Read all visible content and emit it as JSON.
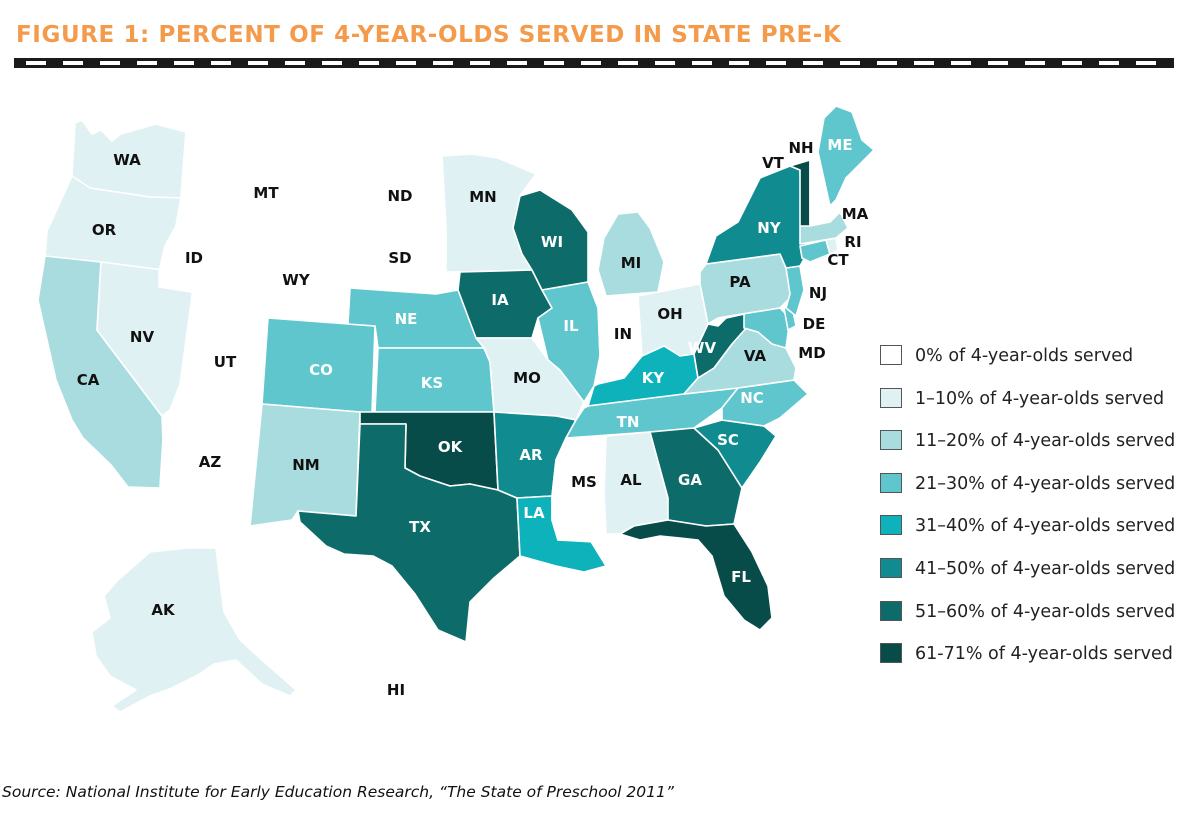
{
  "figure": {
    "title": "FIGURE 1: PERCENT OF 4-YEAR-OLDS SERVED IN STATE PRE-K",
    "source": "Source: National Institute for Early Education Research, “The State of Preschool 2011”"
  },
  "colors": {
    "title": "#f39a4b",
    "rule": "#1a1a1a",
    "text_dark": "#111111",
    "text_light": "#ffffff",
    "border": "#555555"
  },
  "legend": [
    {
      "id": "c0",
      "label": "0% of 4-year-olds served",
      "color": "#ffffff"
    },
    {
      "id": "c1",
      "label": "1–10% of 4-year-olds served",
      "color": "#dff1f3"
    },
    {
      "id": "c2",
      "label": "11–20% of 4-year-olds served",
      "color": "#a9dcdf"
    },
    {
      "id": "c3",
      "label": "21–30% of 4-year-olds served",
      "color": "#5ec6cc"
    },
    {
      "id": "c4",
      "label": "31–40% of 4-year-olds served",
      "color": "#0db2bb"
    },
    {
      "id": "c5",
      "label": "41–50% of 4-year-olds served",
      "color": "#108b8f"
    },
    {
      "id": "c6",
      "label": "51–60% of 4-year-olds served",
      "color": "#0d6c6a"
    },
    {
      "id": "c7",
      "label": "61-71% of 4-year-olds served",
      "color": "#084c4a"
    }
  ],
  "states": [
    {
      "abbr": "WA",
      "category": "c1"
    },
    {
      "abbr": "OR",
      "category": "c1"
    },
    {
      "abbr": "CA",
      "category": "c2"
    },
    {
      "abbr": "NV",
      "category": "c1"
    },
    {
      "abbr": "ID",
      "category": "c0"
    },
    {
      "abbr": "MT",
      "category": "c0"
    },
    {
      "abbr": "WY",
      "category": "c0"
    },
    {
      "abbr": "UT",
      "category": "c0"
    },
    {
      "abbr": "AZ",
      "category": "c0"
    },
    {
      "abbr": "CO",
      "category": "c3"
    },
    {
      "abbr": "NM",
      "category": "c2"
    },
    {
      "abbr": "ND",
      "category": "c0"
    },
    {
      "abbr": "SD",
      "category": "c0"
    },
    {
      "abbr": "NE",
      "category": "c3"
    },
    {
      "abbr": "KS",
      "category": "c3"
    },
    {
      "abbr": "OK",
      "category": "c7"
    },
    {
      "abbr": "TX",
      "category": "c6"
    },
    {
      "abbr": "MN",
      "category": "c1"
    },
    {
      "abbr": "IA",
      "category": "c6"
    },
    {
      "abbr": "MO",
      "category": "c1"
    },
    {
      "abbr": "AR",
      "category": "c5"
    },
    {
      "abbr": "LA",
      "category": "c4"
    },
    {
      "abbr": "WI",
      "category": "c6"
    },
    {
      "abbr": "IL",
      "category": "c3"
    },
    {
      "abbr": "MI",
      "category": "c2"
    },
    {
      "abbr": "IN",
      "category": "c0"
    },
    {
      "abbr": "OH",
      "category": "c1"
    },
    {
      "abbr": "KY",
      "category": "c4"
    },
    {
      "abbr": "TN",
      "category": "c3"
    },
    {
      "abbr": "MS",
      "category": "c0"
    },
    {
      "abbr": "AL",
      "category": "c1"
    },
    {
      "abbr": "GA",
      "category": "c6"
    },
    {
      "abbr": "FL",
      "category": "c7"
    },
    {
      "abbr": "SC",
      "category": "c5"
    },
    {
      "abbr": "NC",
      "category": "c3"
    },
    {
      "abbr": "VA",
      "category": "c2"
    },
    {
      "abbr": "WV",
      "category": "c6"
    },
    {
      "abbr": "PA",
      "category": "c2"
    },
    {
      "abbr": "NY",
      "category": "c5"
    },
    {
      "abbr": "VT",
      "category": "c7"
    },
    {
      "abbr": "NH",
      "category": "c0"
    },
    {
      "abbr": "ME",
      "category": "c3"
    },
    {
      "abbr": "MA",
      "category": "c2"
    },
    {
      "abbr": "RI",
      "category": "c1"
    },
    {
      "abbr": "CT",
      "category": "c3"
    },
    {
      "abbr": "NJ",
      "category": "c3"
    },
    {
      "abbr": "DE",
      "category": "c3"
    },
    {
      "abbr": "MD",
      "category": "c3"
    },
    {
      "abbr": "AK",
      "category": "c1"
    },
    {
      "abbr": "HI",
      "category": "c0"
    }
  ]
}
